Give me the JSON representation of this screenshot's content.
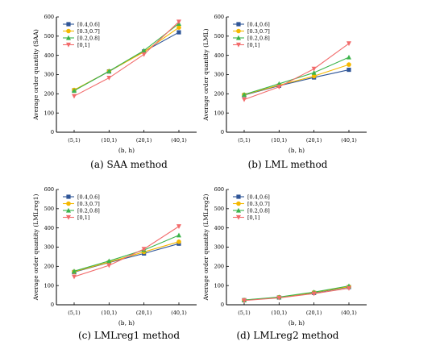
{
  "chart_data": [
    {
      "type": "line",
      "caption": "(a) SAA method",
      "xlabel": "(b, h)",
      "ylabel": "Average order quantity (SAA)",
      "categories": [
        "(5,1)",
        "(10,1)",
        "(20,1)",
        "(40,1)"
      ],
      "ylim": [
        0,
        600
      ],
      "yticks": [
        0,
        100,
        200,
        300,
        400,
        500,
        600
      ],
      "legend": "top-left",
      "series": [
        {
          "name": "[0.4,0.6]",
          "color": "#2f5597",
          "marker": "square",
          "values": [
            218,
            316,
            420,
            520
          ]
        },
        {
          "name": "[0.3,0.7]",
          "color": "#f5b800",
          "marker": "circle",
          "values": [
            220,
            317,
            418,
            545
          ]
        },
        {
          "name": "[0.2,0.8]",
          "color": "#3cb44b",
          "marker": "triangle-up",
          "values": [
            216,
            318,
            425,
            565
          ]
        },
        {
          "name": "[0,1]",
          "color": "#f26c6c",
          "marker": "triangle-down",
          "values": [
            188,
            283,
            405,
            575
          ]
        }
      ]
    },
    {
      "type": "line",
      "caption": "(b) LML method",
      "xlabel": "(b, h)",
      "ylabel": "Average order quantity (LML)",
      "categories": [
        "(5,1)",
        "(10,1)",
        "(20,1)",
        "(40,1)"
      ],
      "ylim": [
        0,
        600
      ],
      "yticks": [
        0,
        100,
        200,
        300,
        400,
        500,
        600
      ],
      "legend": "top-left",
      "series": [
        {
          "name": "[0.4,0.6]",
          "color": "#2f5597",
          "marker": "square",
          "values": [
            193,
            242,
            285,
            325
          ]
        },
        {
          "name": "[0.3,0.7]",
          "color": "#f5b800",
          "marker": "circle",
          "values": [
            195,
            245,
            292,
            352
          ]
        },
        {
          "name": "[0.2,0.8]",
          "color": "#3cb44b",
          "marker": "triangle-up",
          "values": [
            196,
            252,
            310,
            390
          ]
        },
        {
          "name": "[0,1]",
          "color": "#f26c6c",
          "marker": "triangle-down",
          "values": [
            170,
            236,
            330,
            462
          ]
        }
      ]
    },
    {
      "type": "line",
      "caption": "(c) LMLreg1 method",
      "xlabel": "(b, h)",
      "ylabel": "Average order quantity (LMLreg1)",
      "categories": [
        "(5,1)",
        "(10,1)",
        "(20,1)",
        "(40,1)"
      ],
      "ylim": [
        0,
        600
      ],
      "yticks": [
        0,
        100,
        200,
        300,
        400,
        500,
        600
      ],
      "legend": "top-left",
      "series": [
        {
          "name": "[0.4,0.6]",
          "color": "#2f5597",
          "marker": "square",
          "values": [
            170,
            220,
            267,
            318
          ]
        },
        {
          "name": "[0.3,0.7]",
          "color": "#f5b800",
          "marker": "circle",
          "values": [
            172,
            222,
            275,
            328
          ]
        },
        {
          "name": "[0.2,0.8]",
          "color": "#3cb44b",
          "marker": "triangle-up",
          "values": [
            175,
            228,
            285,
            362
          ]
        },
        {
          "name": "[0,1]",
          "color": "#f26c6c",
          "marker": "triangle-down",
          "values": [
            146,
            205,
            290,
            408
          ]
        }
      ]
    },
    {
      "type": "line",
      "caption": "(d) LMLreg2 method",
      "xlabel": "(b, h)",
      "ylabel": "Average order quantity (LMLreg2)",
      "categories": [
        "(5,1)",
        "(10,1)",
        "(20,1)",
        "(40,1)"
      ],
      "ylim": [
        0,
        600
      ],
      "yticks": [
        0,
        100,
        200,
        300,
        400,
        500,
        600
      ],
      "legend": "top-left",
      "series": [
        {
          "name": "[0.4,0.6]",
          "color": "#2f5597",
          "marker": "square",
          "values": [
            24,
            38,
            62,
            92
          ]
        },
        {
          "name": "[0.3,0.7]",
          "color": "#f5b800",
          "marker": "circle",
          "values": [
            24,
            39,
            64,
            94
          ]
        },
        {
          "name": "[0.2,0.8]",
          "color": "#3cb44b",
          "marker": "triangle-up",
          "values": [
            25,
            40,
            66,
            98
          ]
        },
        {
          "name": "[0,1]",
          "color": "#f26c6c",
          "marker": "triangle-down",
          "values": [
            22,
            36,
            58,
            86
          ]
        }
      ]
    }
  ]
}
